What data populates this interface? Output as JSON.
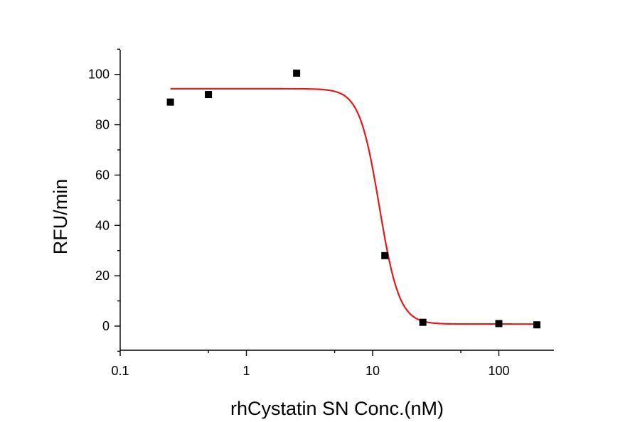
{
  "chart_data": {
    "type": "scatter",
    "title": "",
    "xlabel": "rhCystatin SN Conc.(nM)",
    "ylabel": "RFU/min",
    "x_scale": "log",
    "xlim": [
      0.1,
      200
    ],
    "ylim": [
      -10,
      110
    ],
    "x_ticks": [
      0.1,
      1,
      10,
      100
    ],
    "x_tick_labels": [
      "0.1",
      "1",
      "10",
      "100"
    ],
    "y_ticks": [
      0,
      20,
      40,
      60,
      80,
      100
    ],
    "y_tick_labels": [
      "0",
      "20",
      "40",
      "60",
      "80",
      "100"
    ],
    "grid": false,
    "legend": "none",
    "series": [
      {
        "kind": "points",
        "color": "#000000",
        "marker": "square",
        "x": [
          0.25,
          0.5,
          2.5,
          12.5,
          25,
          100,
          200
        ],
        "y": [
          89,
          92,
          100.5,
          28,
          1.5,
          1,
          0.5
        ]
      },
      {
        "kind": "fit-curve",
        "color": "#e31a1c",
        "model": "four-parameter-logistic",
        "x_range": [
          0.25,
          200
        ],
        "top": 94.3,
        "bottom": 0.8,
        "ic50": 11.3,
        "hill": 5.5
      }
    ]
  }
}
